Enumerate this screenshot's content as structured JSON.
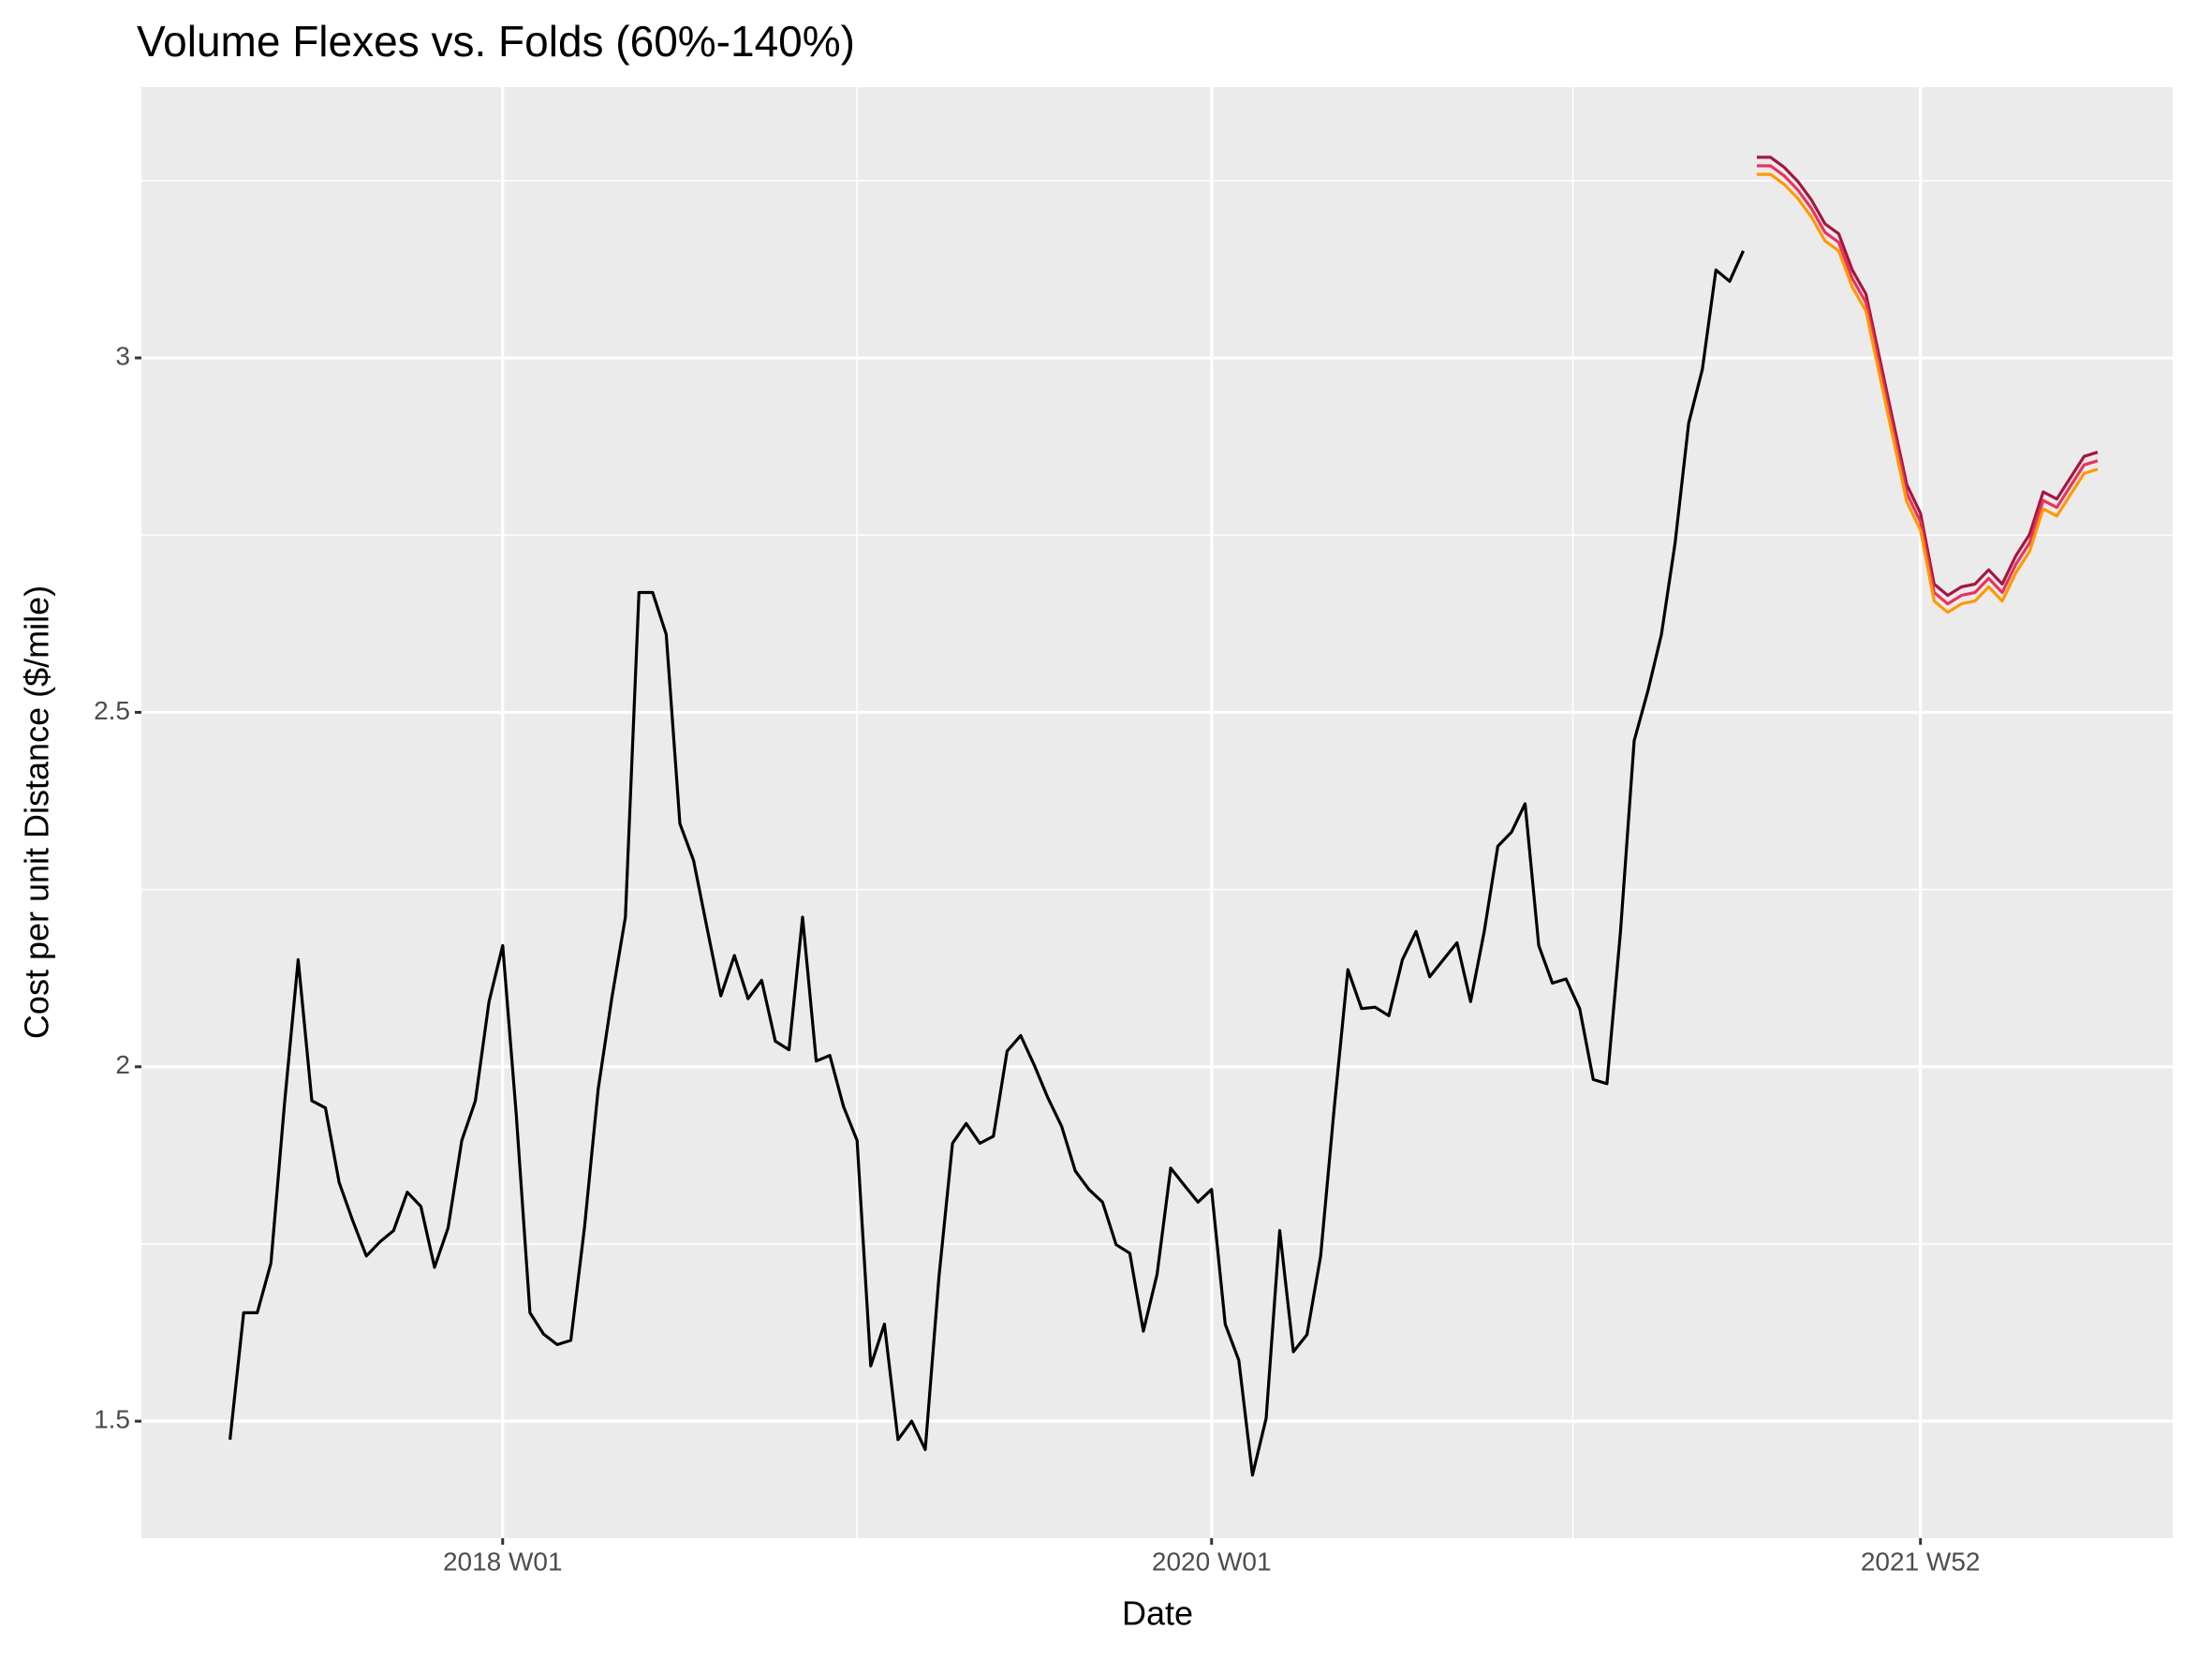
{
  "chart_data": {
    "type": "line",
    "title": "Volume Flexes vs. Folds (60%-140%)",
    "x_label": "Date",
    "y_label": "Cost per unit Distance ($/mile)",
    "xlim": [
      "2016 W52",
      "2022 W37"
    ],
    "xticks": [
      "2018 W01",
      "2020 W01",
      "2021 W52"
    ],
    "xminor": [
      "2019 W01",
      "2021 W01"
    ],
    "ylim": [
      1.335,
      3.382
    ],
    "yticks": [
      1.5,
      2.0,
      2.5,
      3.0
    ],
    "yminor": [
      1.75,
      2.25,
      2.75,
      3.25
    ],
    "grid": true,
    "series": [
      {
        "color": "#000000",
        "x": [
          "2017 W13",
          "2017 W15",
          "2017 W17",
          "2017 W19",
          "2017 W21",
          "2017 W23",
          "2017 W25",
          "2017 W27",
          "2017 W29",
          "2017 W31",
          "2017 W33",
          "2017 W35",
          "2017 W37",
          "2017 W39",
          "2017 W41",
          "2017 W43",
          "2017 W45",
          "2017 W47",
          "2017 W49",
          "2017 W51",
          "2018 W01",
          "2018 W03",
          "2018 W05",
          "2018 W07",
          "2018 W09",
          "2018 W11",
          "2018 W13",
          "2018 W15",
          "2018 W17",
          "2018 W19",
          "2018 W21",
          "2018 W23",
          "2018 W25",
          "2018 W27",
          "2018 W29",
          "2018 W31",
          "2018 W33",
          "2018 W35",
          "2018 W37",
          "2018 W39",
          "2018 W41",
          "2018 W43",
          "2018 W45",
          "2018 W47",
          "2018 W49",
          "2018 W51",
          "2019 W01",
          "2019 W03",
          "2019 W05",
          "2019 W07",
          "2019 W09",
          "2019 W11",
          "2019 W13",
          "2019 W15",
          "2019 W17",
          "2019 W19",
          "2019 W21",
          "2019 W23",
          "2019 W25",
          "2019 W27",
          "2019 W29",
          "2019 W31",
          "2019 W33",
          "2019 W35",
          "2019 W37",
          "2019 W39",
          "2019 W41",
          "2019 W43",
          "2019 W45",
          "2019 W47",
          "2019 W49",
          "2019 W51",
          "2020 W01",
          "2020 W03",
          "2020 W05",
          "2020 W07",
          "2020 W09",
          "2020 W11",
          "2020 W13",
          "2020 W15",
          "2020 W17",
          "2020 W19",
          "2020 W21",
          "2020 W23",
          "2020 W25",
          "2020 W27",
          "2020 W29",
          "2020 W31",
          "2020 W33",
          "2020 W35",
          "2020 W37",
          "2020 W39",
          "2020 W41",
          "2020 W43",
          "2020 W45",
          "2020 W47",
          "2020 W49",
          "2020 W51",
          "2020 W53",
          "2021 W02",
          "2021 W04",
          "2021 W06",
          "2021 W08",
          "2021 W10",
          "2021 W12",
          "2021 W14",
          "2021 W16",
          "2021 W18",
          "2021 W20",
          "2021 W22",
          "2021 W24",
          "2021 W26"
        ],
        "values": [
          1.474,
          1.653,
          1.653,
          1.723,
          1.948,
          2.151,
          1.952,
          1.942,
          1.837,
          1.783,
          1.733,
          1.753,
          1.769,
          1.823,
          1.803,
          1.717,
          1.773,
          1.896,
          1.952,
          2.092,
          2.171,
          1.932,
          1.653,
          1.623,
          1.608,
          1.614,
          1.773,
          1.968,
          2.096,
          2.211,
          2.669,
          2.669,
          2.61,
          2.343,
          2.291,
          2.195,
          2.1,
          2.157,
          2.096,
          2.122,
          2.036,
          2.024,
          2.211,
          2.008,
          2.016,
          1.944,
          1.896,
          1.578,
          1.637,
          1.474,
          1.5,
          1.46,
          1.703,
          1.892,
          1.92,
          1.892,
          1.902,
          2.022,
          2.044,
          2.002,
          1.956,
          1.916,
          1.853,
          1.827,
          1.809,
          1.749,
          1.737,
          1.627,
          1.707,
          1.857,
          1.833,
          1.809,
          1.827,
          1.637,
          1.586,
          1.424,
          1.504,
          1.769,
          1.598,
          1.622,
          1.733,
          1.942,
          2.137,
          2.082,
          2.084,
          2.072,
          2.151,
          2.191,
          2.127,
          2.151,
          2.175,
          2.092,
          2.191,
          2.311,
          2.331,
          2.371,
          2.171,
          2.118,
          2.124,
          2.082,
          1.982,
          1.976,
          2.191,
          2.46,
          2.53,
          2.61,
          2.739,
          2.908,
          2.984,
          3.124,
          3.108,
          3.151
        ]
      },
      {
        "color": "#A3173F",
        "x": [
          "2021 W28",
          "2021 W30",
          "2021 W32",
          "2021 W34",
          "2021 W36",
          "2021 W38",
          "2021 W40",
          "2021 W42",
          "2021 W44",
          "2021 W46",
          "2021 W48",
          "2021 W50",
          "2021 W52",
          "2022 W02",
          "2022 W04",
          "2022 W06",
          "2022 W08",
          "2022 W10",
          "2022 W12",
          "2022 W14",
          "2022 W16",
          "2022 W18",
          "2022 W20",
          "2022 W22",
          "2022 W24",
          "2022 W26"
        ],
        "values": [
          3.283,
          3.283,
          3.269,
          3.249,
          3.223,
          3.189,
          3.175,
          3.124,
          3.09,
          3.0,
          2.91,
          2.821,
          2.781,
          2.681,
          2.665,
          2.677,
          2.681,
          2.701,
          2.681,
          2.721,
          2.751,
          2.811,
          2.801,
          2.831,
          2.861,
          2.867
        ]
      },
      {
        "color": "#E8335F",
        "x": [
          "2021 W28",
          "2021 W30",
          "2021 W32",
          "2021 W34",
          "2021 W36",
          "2021 W38",
          "2021 W40",
          "2021 W42",
          "2021 W44",
          "2021 W46",
          "2021 W48",
          "2021 W50",
          "2021 W52",
          "2022 W02",
          "2022 W04",
          "2022 W06",
          "2022 W08",
          "2022 W10",
          "2022 W12",
          "2022 W14",
          "2022 W16",
          "2022 W18",
          "2022 W20",
          "2022 W22",
          "2022 W24",
          "2022 W26"
        ],
        "values": [
          3.271,
          3.271,
          3.257,
          3.237,
          3.211,
          3.177,
          3.163,
          3.112,
          3.078,
          2.988,
          2.898,
          2.809,
          2.769,
          2.669,
          2.653,
          2.665,
          2.669,
          2.689,
          2.669,
          2.709,
          2.739,
          2.799,
          2.789,
          2.819,
          2.849,
          2.855
        ]
      },
      {
        "color": "#FF9900",
        "x": [
          "2021 W28",
          "2021 W30",
          "2021 W32",
          "2021 W34",
          "2021 W36",
          "2021 W38",
          "2021 W40",
          "2021 W42",
          "2021 W44",
          "2021 W46",
          "2021 W48",
          "2021 W50",
          "2021 W52",
          "2022 W02",
          "2022 W04",
          "2022 W06",
          "2022 W08",
          "2022 W10",
          "2022 W12",
          "2022 W14",
          "2022 W16",
          "2022 W18",
          "2022 W20",
          "2022 W22",
          "2022 W24",
          "2022 W26"
        ],
        "values": [
          3.259,
          3.259,
          3.245,
          3.225,
          3.199,
          3.165,
          3.151,
          3.1,
          3.066,
          2.976,
          2.886,
          2.797,
          2.757,
          2.657,
          2.641,
          2.653,
          2.657,
          2.677,
          2.657,
          2.697,
          2.727,
          2.787,
          2.777,
          2.807,
          2.837,
          2.843
        ]
      }
    ]
  }
}
